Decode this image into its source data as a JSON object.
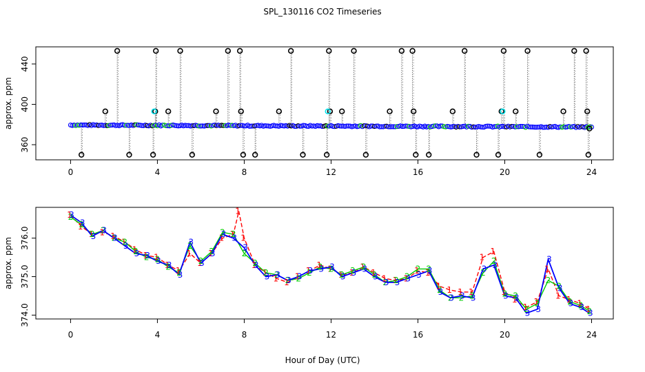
{
  "figure": {
    "title": "SPL_130116  CO2 Timeseries",
    "xlabel": "Hour of Day (UTC)"
  },
  "colors": {
    "ch1": "#ff0000",
    "ch2": "#00cc00",
    "ch3": "#0000ff",
    "cyan": "#00e5ee",
    "axis": "#000000"
  },
  "chart_data": [
    {
      "type": "scatter",
      "name": "top-panel",
      "ylabel": "approx. ppm",
      "xlim": [
        -1.6,
        25.0
      ],
      "ylim": [
        345,
        457
      ],
      "xticks": [
        0,
        4,
        8,
        12,
        16,
        20,
        24
      ],
      "yticks": [
        360,
        400,
        440
      ],
      "baseline": 378,
      "baseline_from": 379.5,
      "baseline_to": 377.5,
      "excursions": [
        {
          "x": 0.5,
          "y": 350
        },
        {
          "x": 1.6,
          "y": 393
        },
        {
          "x": 2.15,
          "y": 453
        },
        {
          "x": 2.7,
          "y": 350
        },
        {
          "x": 3.8,
          "y": 350
        },
        {
          "x": 3.9,
          "y": 393
        },
        {
          "x": 3.93,
          "y": 453
        },
        {
          "x": 4.5,
          "y": 393
        },
        {
          "x": 5.05,
          "y": 453
        },
        {
          "x": 5.6,
          "y": 350
        },
        {
          "x": 6.7,
          "y": 393
        },
        {
          "x": 7.25,
          "y": 453
        },
        {
          "x": 7.8,
          "y": 453
        },
        {
          "x": 7.85,
          "y": 393
        },
        {
          "x": 7.95,
          "y": 350
        },
        {
          "x": 8.5,
          "y": 350
        },
        {
          "x": 9.6,
          "y": 393
        },
        {
          "x": 10.15,
          "y": 453
        },
        {
          "x": 10.7,
          "y": 350
        },
        {
          "x": 11.8,
          "y": 350
        },
        {
          "x": 11.9,
          "y": 453
        },
        {
          "x": 11.95,
          "y": 393
        },
        {
          "x": 12.5,
          "y": 393
        },
        {
          "x": 13.05,
          "y": 453
        },
        {
          "x": 13.6,
          "y": 350
        },
        {
          "x": 14.7,
          "y": 393
        },
        {
          "x": 15.25,
          "y": 453
        },
        {
          "x": 15.75,
          "y": 453
        },
        {
          "x": 15.8,
          "y": 393
        },
        {
          "x": 15.9,
          "y": 350
        },
        {
          "x": 16.5,
          "y": 350
        },
        {
          "x": 17.6,
          "y": 393
        },
        {
          "x": 18.15,
          "y": 453
        },
        {
          "x": 18.7,
          "y": 350
        },
        {
          "x": 19.7,
          "y": 350
        },
        {
          "x": 19.85,
          "y": 393
        },
        {
          "x": 19.95,
          "y": 453
        },
        {
          "x": 20.5,
          "y": 393
        },
        {
          "x": 21.05,
          "y": 453
        },
        {
          "x": 21.6,
          "y": 350
        },
        {
          "x": 22.7,
          "y": 393
        },
        {
          "x": 23.2,
          "y": 453
        },
        {
          "x": 23.75,
          "y": 453
        },
        {
          "x": 23.8,
          "y": 393
        },
        {
          "x": 23.85,
          "y": 350
        },
        {
          "x": 23.9,
          "y": 376
        }
      ],
      "cyan_points": [
        {
          "x": 3.85,
          "y": 393
        },
        {
          "x": 11.85,
          "y": 393
        },
        {
          "x": 19.9,
          "y": 393
        }
      ]
    },
    {
      "type": "line",
      "name": "bottom-panel",
      "ylabel": "approx. ppm",
      "xlim": [
        -1.6,
        25.0
      ],
      "ylim": [
        373.9,
        376.8
      ],
      "xticks": [
        0,
        4,
        8,
        12,
        16,
        20,
        24
      ],
      "yticks": [
        374.0,
        375.0,
        376.0
      ],
      "ytick_labels": [
        "374.0",
        "375.0",
        "376.0"
      ],
      "series": [
        {
          "name": "1",
          "marker": "1",
          "x": [
            0,
            0.5,
            1,
            1.5,
            2,
            2.5,
            3,
            3.5,
            4,
            4.5,
            5,
            5.5,
            6,
            6.5,
            7,
            7.5,
            7.75,
            8,
            8.5,
            9,
            9.5,
            10,
            10.5,
            11,
            11.5,
            12,
            12.5,
            13,
            13.5,
            14,
            14.5,
            15,
            15.5,
            16,
            16.5,
            17,
            17.5,
            18,
            18.5,
            19,
            19.5,
            20,
            20.5,
            21,
            21.5,
            22,
            22.5,
            23,
            23.5,
            23.9
          ],
          "y": [
            376.6,
            376.3,
            376.1,
            376.15,
            376.05,
            375.9,
            375.7,
            375.55,
            375.5,
            375.3,
            375.15,
            375.6,
            375.35,
            375.6,
            376.0,
            376.1,
            376.7,
            376.0,
            375.3,
            375.1,
            374.95,
            374.85,
            375.0,
            375.15,
            375.3,
            375.2,
            375.05,
            375.1,
            375.25,
            375.1,
            374.95,
            374.9,
            374.95,
            375.15,
            375.1,
            374.75,
            374.65,
            374.6,
            374.6,
            375.5,
            375.65,
            374.6,
            374.4,
            374.2,
            374.35,
            375.2,
            374.5,
            374.4,
            374.3,
            374.15
          ]
        },
        {
          "name": "2",
          "marker": "2",
          "x": [
            0,
            0.5,
            1,
            1.5,
            2,
            2.5,
            3,
            3.5,
            4,
            4.5,
            5,
            5.5,
            6,
            6.5,
            7,
            7.5,
            8,
            8.5,
            9,
            9.5,
            10,
            10.5,
            11,
            11.5,
            12,
            12.5,
            13,
            13.5,
            14,
            14.5,
            15,
            15.5,
            16,
            16.5,
            17,
            17.5,
            18,
            18.5,
            19,
            19.5,
            20,
            20.5,
            21,
            21.5,
            22,
            22.5,
            23,
            23.5,
            23.9
          ],
          "y": [
            376.55,
            376.35,
            376.1,
            376.2,
            376.0,
            375.9,
            375.65,
            375.5,
            375.45,
            375.25,
            375.1,
            375.8,
            375.4,
            375.65,
            376.15,
            376.1,
            375.6,
            375.35,
            375.1,
            375.05,
            374.9,
            374.95,
            375.1,
            375.25,
            375.2,
            375.05,
            375.15,
            375.25,
            375.05,
            374.85,
            374.9,
            375.0,
            375.2,
            375.2,
            374.65,
            374.45,
            374.45,
            374.5,
            375.1,
            375.4,
            374.55,
            374.5,
            374.15,
            374.3,
            374.9,
            374.75,
            374.35,
            374.25,
            374.1
          ]
        },
        {
          "name": "3",
          "marker": "3",
          "x": [
            0,
            0.5,
            1,
            1.5,
            2,
            2.5,
            3,
            3.5,
            4,
            4.5,
            5,
            5.5,
            6,
            6.5,
            7,
            7.5,
            8,
            8.5,
            9,
            9.5,
            10,
            10.5,
            11,
            11.5,
            12,
            12.5,
            13,
            13.5,
            14,
            14.5,
            15,
            15.5,
            16,
            16.5,
            17,
            17.5,
            18,
            18.5,
            19,
            19.5,
            20,
            20.5,
            21,
            21.5,
            22,
            22.5,
            23,
            23.5,
            23.9
          ],
          "y": [
            376.6,
            376.4,
            376.05,
            376.2,
            376.0,
            375.8,
            375.6,
            375.55,
            375.4,
            375.3,
            375.05,
            375.9,
            375.35,
            375.6,
            376.1,
            376.0,
            375.75,
            375.3,
            375.0,
            375.05,
            374.9,
            375.0,
            375.15,
            375.2,
            375.25,
            375.0,
            375.1,
            375.2,
            375.0,
            374.85,
            374.85,
            374.95,
            375.05,
            375.15,
            374.6,
            374.45,
            374.5,
            374.45,
            375.2,
            375.3,
            374.5,
            374.45,
            374.05,
            374.15,
            375.45,
            374.7,
            374.3,
            374.2,
            374.05
          ]
        }
      ]
    }
  ]
}
